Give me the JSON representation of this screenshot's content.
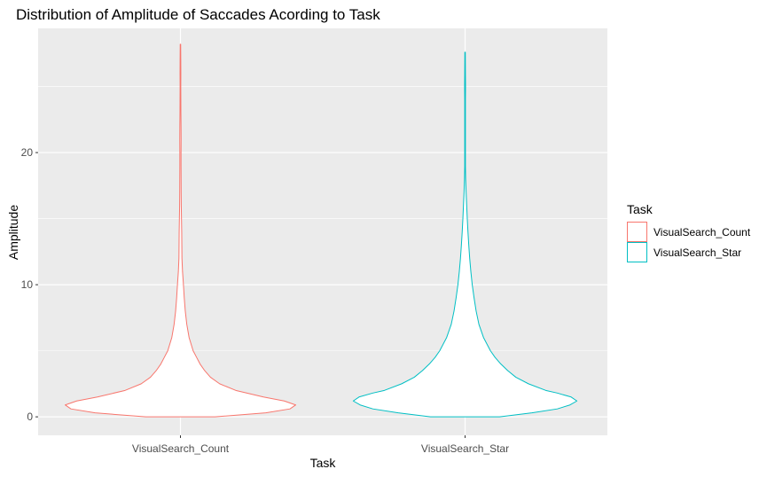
{
  "chart_data": {
    "type": "violin",
    "title": "Distribution of Amplitude of Saccades Acording to Task",
    "xlabel": "Task",
    "ylabel": "Amplitude",
    "categories": [
      "VisualSearch_Count",
      "VisualSearch_Star"
    ],
    "ylim": [
      -1.4,
      29.4
    ],
    "yticks": [
      0,
      10,
      20
    ],
    "grid": true,
    "panel_background": "#ebebeb",
    "legend": {
      "title": "Task",
      "position": "right",
      "entries": [
        "VisualSearch_Count",
        "VisualSearch_Star"
      ]
    },
    "colors": {
      "VisualSearch_Count": "#F8766D",
      "VisualSearch_Star": "#00BFC4"
    },
    "series": [
      {
        "name": "VisualSearch_Count",
        "min": 0.0,
        "max": 28.2,
        "density_profile": [
          [
            0.0,
            0.3
          ],
          [
            0.3,
            0.74
          ],
          [
            0.6,
            0.95
          ],
          [
            0.9,
            1.0
          ],
          [
            1.2,
            0.9
          ],
          [
            1.5,
            0.72
          ],
          [
            2.0,
            0.48
          ],
          [
            2.5,
            0.34
          ],
          [
            3.0,
            0.26
          ],
          [
            3.5,
            0.21
          ],
          [
            4.0,
            0.17
          ],
          [
            4.5,
            0.14
          ],
          [
            5.0,
            0.11
          ],
          [
            6.0,
            0.075
          ],
          [
            7.0,
            0.055
          ],
          [
            8.0,
            0.042
          ],
          [
            9.0,
            0.033
          ],
          [
            10.0,
            0.026
          ],
          [
            11.0,
            0.018
          ],
          [
            12.0,
            0.013
          ],
          [
            13.0,
            0.012
          ],
          [
            14.0,
            0.011
          ],
          [
            15.0,
            0.009
          ],
          [
            16.0,
            0.007
          ],
          [
            17.0,
            0.006
          ],
          [
            18.0,
            0.0055
          ],
          [
            19.0,
            0.005
          ],
          [
            20.0,
            0.005
          ],
          [
            21.0,
            0.0055
          ],
          [
            22.0,
            0.005
          ],
          [
            23.0,
            0.004
          ],
          [
            24.0,
            0.0035
          ],
          [
            25.0,
            0.003
          ],
          [
            26.0,
            0.0035
          ],
          [
            27.0,
            0.003
          ],
          [
            28.2,
            0.002
          ]
        ]
      },
      {
        "name": "VisualSearch_Star",
        "min": 0.0,
        "max": 27.6,
        "density_profile": [
          [
            0.0,
            0.3
          ],
          [
            0.3,
            0.58
          ],
          [
            0.6,
            0.8
          ],
          [
            0.9,
            0.91
          ],
          [
            1.2,
            0.97
          ],
          [
            1.5,
            0.92
          ],
          [
            1.8,
            0.8
          ],
          [
            2.0,
            0.7
          ],
          [
            2.5,
            0.55
          ],
          [
            3.0,
            0.44
          ],
          [
            3.5,
            0.37
          ],
          [
            4.0,
            0.31
          ],
          [
            4.5,
            0.26
          ],
          [
            5.0,
            0.22
          ],
          [
            6.0,
            0.16
          ],
          [
            7.0,
            0.12
          ],
          [
            8.0,
            0.096
          ],
          [
            9.0,
            0.078
          ],
          [
            10.0,
            0.062
          ],
          [
            11.0,
            0.05
          ],
          [
            12.0,
            0.04
          ],
          [
            13.0,
            0.032
          ],
          [
            14.0,
            0.025
          ],
          [
            15.0,
            0.019
          ],
          [
            16.0,
            0.014
          ],
          [
            17.0,
            0.009
          ],
          [
            18.0,
            0.005
          ],
          [
            19.0,
            0.003
          ],
          [
            20.0,
            0.003
          ],
          [
            22.0,
            0.003
          ],
          [
            24.0,
            0.003
          ],
          [
            25.0,
            0.004
          ],
          [
            26.0,
            0.003
          ],
          [
            27.6,
            0.002
          ]
        ]
      }
    ]
  }
}
